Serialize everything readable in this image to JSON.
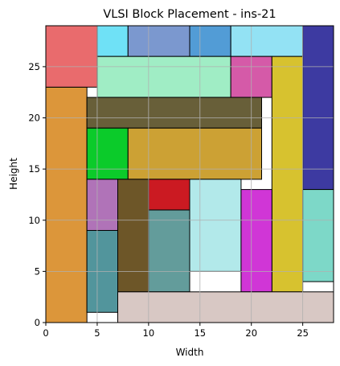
{
  "chart_data": {
    "type": "block-placement",
    "title": "VLSI Block Placement - ins-21",
    "xlabel": "Width",
    "ylabel": "Height",
    "xlim": [
      0,
      28
    ],
    "ylim": [
      0,
      29
    ],
    "xticks": [
      0,
      5,
      10,
      15,
      20,
      25
    ],
    "yticks": [
      0,
      5,
      10,
      15,
      20,
      25
    ],
    "grid": true,
    "blocks": [
      {
        "x": 0,
        "y": 0,
        "w": 4,
        "h": 23,
        "color": "#dc963a"
      },
      {
        "x": 0,
        "y": 23,
        "w": 5,
        "h": 6,
        "color": "#e96b6d"
      },
      {
        "x": 5,
        "y": 26,
        "w": 3,
        "h": 3,
        "color": "#6fe1f6"
      },
      {
        "x": 8,
        "y": 26,
        "w": 6,
        "h": 3,
        "color": "#7b98cf"
      },
      {
        "x": 14,
        "y": 26,
        "w": 4,
        "h": 3,
        "color": "#529cd6"
      },
      {
        "x": 18,
        "y": 26,
        "w": 7,
        "h": 3,
        "color": "#93e2f4"
      },
      {
        "x": 25,
        "y": 13,
        "w": 3,
        "h": 16,
        "color": "#3d3aa1"
      },
      {
        "x": 5,
        "y": 22,
        "w": 13,
        "h": 4,
        "color": "#a0edc5"
      },
      {
        "x": 18,
        "y": 22,
        "w": 4,
        "h": 4,
        "color": "#d55aa8"
      },
      {
        "x": 22,
        "y": 3,
        "w": 3,
        "h": 23,
        "color": "#d7c22f"
      },
      {
        "x": 4,
        "y": 19,
        "w": 17,
        "h": 3,
        "color": "#685f39"
      },
      {
        "x": 4,
        "y": 14,
        "w": 4,
        "h": 5,
        "color": "#0bcb2a"
      },
      {
        "x": 8,
        "y": 14,
        "w": 13,
        "h": 5,
        "color": "#cca134"
      },
      {
        "x": 4,
        "y": 9,
        "w": 3,
        "h": 5,
        "color": "#b073b8"
      },
      {
        "x": 4,
        "y": 1,
        "w": 3,
        "h": 8,
        "color": "#52959c"
      },
      {
        "x": 7,
        "y": 3,
        "w": 3,
        "h": 11,
        "color": "#6d5628"
      },
      {
        "x": 10,
        "y": 11,
        "w": 4,
        "h": 3,
        "color": "#cb1a22"
      },
      {
        "x": 10,
        "y": 3,
        "w": 4,
        "h": 8,
        "color": "#639c9b"
      },
      {
        "x": 14,
        "y": 5,
        "w": 5,
        "h": 9,
        "color": "#b2e9ea"
      },
      {
        "x": 19,
        "y": 3,
        "w": 3,
        "h": 10,
        "color": "#d036d6"
      },
      {
        "x": 25,
        "y": 4,
        "w": 3,
        "h": 9,
        "color": "#7dd8c8"
      },
      {
        "x": 7,
        "y": 0,
        "w": 21,
        "h": 3,
        "color": "#d8c8c4"
      }
    ]
  }
}
